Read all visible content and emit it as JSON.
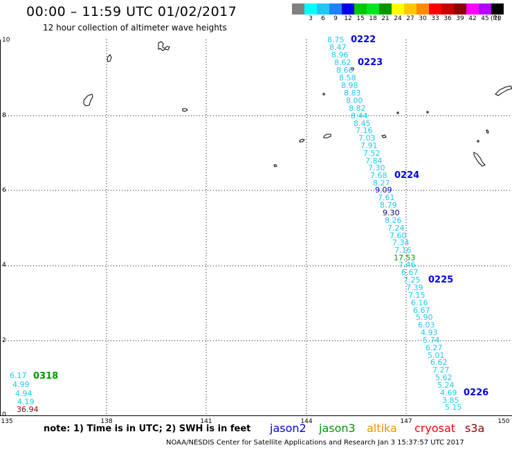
{
  "header": {
    "title": "00:00 – 11:59 UTC 01/02/2017",
    "subtitle": "12 hour collection of altimeter wave heights"
  },
  "legend": {
    "unit": "(ft)",
    "items": [
      {
        "label": "",
        "color": "#808080"
      },
      {
        "label": "3",
        "color": "#00ffff"
      },
      {
        "label": "6",
        "color": "#1ec8f0"
      },
      {
        "label": "9",
        "color": "#1e82ff"
      },
      {
        "label": "12",
        "color": "#0000e6"
      },
      {
        "label": "15",
        "color": "#00c800"
      },
      {
        "label": "18",
        "color": "#00e61e"
      },
      {
        "label": "21",
        "color": "#009600"
      },
      {
        "label": "24",
        "color": "#ffff00"
      },
      {
        "label": "27",
        "color": "#ffc800"
      },
      {
        "label": "30",
        "color": "#ff8c00"
      },
      {
        "label": "33",
        "color": "#ff0000"
      },
      {
        "label": "36",
        "color": "#c80000"
      },
      {
        "label": "39",
        "color": "#8c0000"
      },
      {
        "label": "42",
        "color": "#ff00ff"
      },
      {
        "label": "45",
        "color": "#b400ff"
      },
      {
        "label": "70",
        "color": "#000000"
      }
    ]
  },
  "axes": {
    "x_ticks": [
      "135",
      "138",
      "141",
      "144",
      "147",
      "150"
    ],
    "y_ticks": [
      "0",
      "2",
      "4",
      "6",
      "8",
      "10"
    ]
  },
  "observations": [
    {
      "text": "8.75",
      "color": "#1ec8f0"
    },
    {
      "text": "8.47",
      "color": "#1ec8f0"
    },
    {
      "text": "8.96",
      "color": "#1ec8f0"
    },
    {
      "text": "8.62",
      "color": "#1ec8f0"
    },
    {
      "text": "8.66",
      "color": "#1ec8f0"
    },
    {
      "text": "8.58",
      "color": "#1ec8f0"
    },
    {
      "text": "8.98",
      "color": "#1ec8f0"
    },
    {
      "text": "8.83",
      "color": "#1ec8f0"
    },
    {
      "text": "8.00",
      "color": "#1ec8f0"
    },
    {
      "text": "8.82",
      "color": "#1ec8f0"
    },
    {
      "text": "8.44",
      "color": "#1ec8f0"
    },
    {
      "text": "8.45",
      "color": "#1ec8f0"
    },
    {
      "text": "7.16",
      "color": "#1ec8f0"
    },
    {
      "text": "7.03",
      "color": "#1ec8f0"
    },
    {
      "text": "7.91",
      "color": "#1ec8f0"
    },
    {
      "text": "7.52",
      "color": "#1ec8f0"
    },
    {
      "text": "7.84",
      "color": "#1ec8f0"
    },
    {
      "text": "7.30",
      "color": "#1ec8f0"
    },
    {
      "text": "7.68",
      "color": "#1ec8f0"
    },
    {
      "text": "8.27",
      "color": "#1ec8f0"
    },
    {
      "text": "9.09",
      "color": "#0000e6"
    },
    {
      "text": "7.61",
      "color": "#1ec8f0"
    },
    {
      "text": "8.79",
      "color": "#1ec8f0"
    },
    {
      "text": "9.30",
      "color": "#000080"
    },
    {
      "text": "8.26",
      "color": "#1ec8f0"
    },
    {
      "text": "7.24",
      "color": "#1ec8f0"
    },
    {
      "text": "7.60",
      "color": "#1ec8f0"
    },
    {
      "text": "7.34",
      "color": "#1ec8f0"
    },
    {
      "text": "7.16",
      "color": "#1ec8f0"
    },
    {
      "text": "17.53",
      "color": "#009600"
    },
    {
      "text": "7.46",
      "color": "#1ec8f0"
    },
    {
      "text": "6.67",
      "color": "#1ec8f0"
    },
    {
      "text": "7.25",
      "color": "#1ec8f0"
    },
    {
      "text": "7.39",
      "color": "#1ec8f0"
    },
    {
      "text": "7.15",
      "color": "#1ec8f0"
    },
    {
      "text": "6.16",
      "color": "#1ec8f0"
    },
    {
      "text": "6.67",
      "color": "#1ec8f0"
    },
    {
      "text": "5.90",
      "color": "#1ec8f0"
    },
    {
      "text": "6.03",
      "color": "#1ec8f0"
    },
    {
      "text": "4.93",
      "color": "#1ec8f0"
    },
    {
      "text": "5.74",
      "color": "#1ec8f0"
    },
    {
      "text": "6.27",
      "color": "#1ec8f0"
    },
    {
      "text": "5.01",
      "color": "#1ec8f0"
    },
    {
      "text": "6.62",
      "color": "#1ec8f0"
    },
    {
      "text": "7.27",
      "color": "#1ec8f0"
    },
    {
      "text": "5.62",
      "color": "#1ec8f0"
    },
    {
      "text": "5.24",
      "color": "#1ec8f0"
    },
    {
      "text": "4.69",
      "color": "#1ec8f0"
    },
    {
      "text": "3.85",
      "color": "#1ec8f0"
    },
    {
      "text": "5.15",
      "color": "#1ec8f0"
    },
    {
      "text": "6.17",
      "color": "#1ec8f0"
    },
    {
      "text": "4.99",
      "color": "#1ec8f0"
    },
    {
      "text": "4.94",
      "color": "#1ec8f0"
    },
    {
      "text": "4.19",
      "color": "#1ec8f0"
    },
    {
      "text": "36.94",
      "color": "#8c0000"
    }
  ],
  "track_labels": [
    {
      "text": "0222",
      "color": "#0000e6"
    },
    {
      "text": "0223",
      "color": "#0000e6"
    },
    {
      "text": "0224",
      "color": "#0000e6"
    },
    {
      "text": "0225",
      "color": "#0000e6"
    },
    {
      "text": "0226",
      "color": "#0000e6"
    },
    {
      "text": "0318",
      "color": "#009600"
    }
  ],
  "footer": {
    "note": "note: 1) Time is in UTC; 2) SWH is in feet",
    "satellites": [
      {
        "name": "jason2",
        "color": "#0000e6"
      },
      {
        "name": "jason3",
        "color": "#009600"
      },
      {
        "name": "altika",
        "color": "#ff8c00"
      },
      {
        "name": "cryosat",
        "color": "#ff0000"
      },
      {
        "name": "s3a",
        "color": "#8c0000"
      }
    ],
    "credit": "NOAA/NESDIS Center for Satellite Applications and Research    Jan  3 15:37:57 UTC 2017"
  }
}
